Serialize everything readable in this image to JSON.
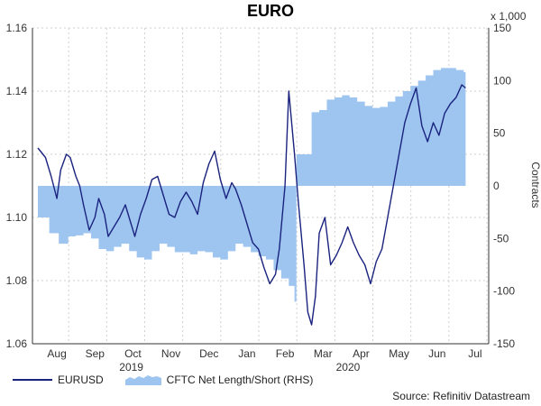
{
  "chart_data": {
    "type": "line",
    "title": "EURO",
    "x_ticks": [
      "Aug",
      "Sep",
      "Oct",
      "Nov",
      "Dec",
      "Jan",
      "Feb",
      "Mar",
      "Apr",
      "May",
      "Jun",
      "Jul"
    ],
    "year_labels": [
      "2019",
      "2020"
    ],
    "y_left": {
      "ticks": [
        "1.06",
        "1.08",
        "1.10",
        "1.12",
        "1.14",
        "1.16"
      ],
      "ylim": [
        1.06,
        1.16
      ]
    },
    "y_right": {
      "ticks": [
        "-150",
        "-100",
        "-50",
        "0",
        "50",
        "100",
        "150"
      ],
      "ylim": [
        -150,
        150
      ],
      "label": "Contracts",
      "multiplier_label": "x 1,000"
    },
    "colors": {
      "eurusd": "#1a237e",
      "cftc": "#9ec5f0",
      "grid": "#cfcfcf"
    },
    "series": [
      {
        "name": "EURUSD",
        "axis": "left",
        "x": [
          0.0,
          0.2,
          0.35,
          0.5,
          0.6,
          0.75,
          0.85,
          1.0,
          1.1,
          1.2,
          1.35,
          1.5,
          1.6,
          1.75,
          1.85,
          2.0,
          2.15,
          2.3,
          2.45,
          2.55,
          2.7,
          2.85,
          3.0,
          3.15,
          3.3,
          3.45,
          3.6,
          3.75,
          3.9,
          4.05,
          4.2,
          4.35,
          4.5,
          4.65,
          4.8,
          4.95,
          5.1,
          5.2,
          5.35,
          5.5,
          5.65,
          5.8,
          5.95,
          6.1,
          6.25,
          6.35,
          6.5,
          6.6,
          6.75,
          6.85,
          7.0,
          7.1,
          7.2,
          7.3,
          7.4,
          7.55,
          7.7,
          7.85,
          8.0,
          8.15,
          8.3,
          8.45,
          8.6,
          8.75,
          8.9,
          9.05,
          9.2,
          9.35,
          9.5,
          9.65,
          9.8,
          9.95,
          10.1,
          10.25,
          10.4,
          10.55,
          10.7,
          10.85,
          11.0,
          11.15,
          11.25
        ],
        "values": [
          1.122,
          1.119,
          1.113,
          1.106,
          1.115,
          1.12,
          1.119,
          1.113,
          1.11,
          1.104,
          1.096,
          1.1,
          1.106,
          1.101,
          1.094,
          1.097,
          1.1,
          1.104,
          1.098,
          1.094,
          1.101,
          1.106,
          1.112,
          1.113,
          1.107,
          1.101,
          1.1,
          1.105,
          1.108,
          1.105,
          1.101,
          1.111,
          1.117,
          1.121,
          1.112,
          1.106,
          1.111,
          1.109,
          1.104,
          1.098,
          1.092,
          1.09,
          1.084,
          1.079,
          1.082,
          1.09,
          1.11,
          1.14,
          1.12,
          1.105,
          1.085,
          1.07,
          1.066,
          1.075,
          1.095,
          1.1,
          1.085,
          1.088,
          1.092,
          1.097,
          1.092,
          1.088,
          1.085,
          1.079,
          1.086,
          1.09,
          1.1,
          1.11,
          1.12,
          1.13,
          1.136,
          1.141,
          1.129,
          1.124,
          1.13,
          1.126,
          1.133,
          1.136,
          1.138,
          1.142,
          1.141
        ]
      },
      {
        "name": "CFTC Net Length/Short (RHS)",
        "axis": "right",
        "x": [
          0.0,
          0.3,
          0.55,
          0.8,
          1.0,
          1.2,
          1.4,
          1.6,
          1.8,
          2.0,
          2.2,
          2.4,
          2.6,
          2.8,
          3.0,
          3.2,
          3.4,
          3.6,
          3.8,
          4.0,
          4.2,
          4.4,
          4.6,
          4.8,
          5.0,
          5.2,
          5.4,
          5.6,
          5.8,
          6.0,
          6.2,
          6.4,
          6.6,
          6.75,
          6.8,
          7.0,
          7.2,
          7.4,
          7.6,
          7.8,
          8.0,
          8.2,
          8.4,
          8.6,
          8.8,
          9.0,
          9.2,
          9.4,
          9.6,
          9.8,
          10.0,
          10.2,
          10.4,
          10.6,
          10.8,
          11.0,
          11.2,
          11.25
        ],
        "values": [
          -30,
          -45,
          -55,
          -48,
          -47,
          -45,
          -50,
          -60,
          -62,
          -58,
          -55,
          -62,
          -68,
          -70,
          -62,
          -55,
          -58,
          -63,
          -63,
          -65,
          -62,
          -63,
          -68,
          -70,
          -62,
          -55,
          -58,
          -63,
          -67,
          -70,
          -80,
          -88,
          -95,
          -110,
          30,
          30,
          70,
          72,
          82,
          84,
          86,
          84,
          80,
          76,
          74,
          75,
          80,
          85,
          90,
          95,
          100,
          105,
          110,
          112,
          112,
          110,
          108,
          110
        ]
      }
    ]
  },
  "legend": {
    "eurusd": "EURUSD",
    "cftc": "CFTC Net Length/Short (RHS)"
  },
  "source": "Source: Refinitiv Datastream"
}
